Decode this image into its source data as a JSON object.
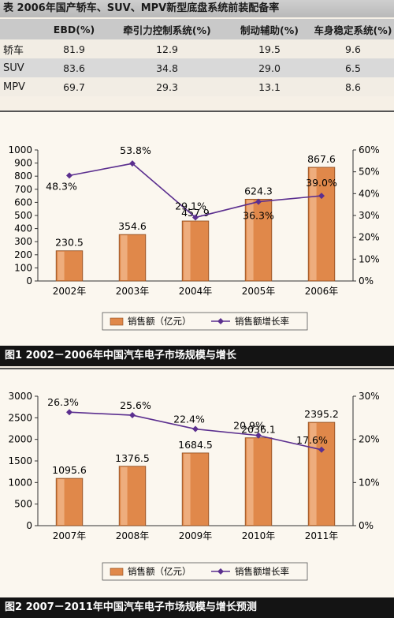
{
  "table": {
    "title": "表 2006年国产轿车、SUV、MPV新型底盘系统前装配备率",
    "headers": [
      "",
      "EBD(%)",
      "牵引力控制系统(%)",
      "制动辅助(%)",
      "车身稳定系统(%)"
    ],
    "rows": [
      [
        "轿车",
        "81.9",
        "12.9",
        "19.5",
        "9.6"
      ],
      [
        "SUV",
        "83.6",
        "34.8",
        "29.0",
        "6.5"
      ],
      [
        "MPV",
        "69.7",
        "29.3",
        "13.1",
        "8.6"
      ]
    ]
  },
  "chart_data": [
    {
      "type": "bar",
      "title": "图1 2002－2006年中国汽车电子市场规模与增长",
      "categories": [
        "2002年",
        "2003年",
        "2004年",
        "2005年",
        "2006年"
      ],
      "series": [
        {
          "name": "销售额（亿元）",
          "type": "bar",
          "axis": "left",
          "values": [
            230.5,
            354.6,
            457.9,
            624.3,
            867.6
          ],
          "labels": [
            "230.5",
            "354.6",
            "457.9",
            "624.3",
            "867.6"
          ]
        },
        {
          "name": "销售额增长率",
          "type": "line",
          "axis": "right",
          "values": [
            48.3,
            53.8,
            29.1,
            36.3,
            39.0
          ],
          "labels": [
            "48.3%",
            "53.8%",
            "29.1%",
            "36.3%",
            "39.0%"
          ]
        }
      ],
      "left_ticks": [
        "0",
        "100",
        "200",
        "300",
        "400",
        "500",
        "600",
        "700",
        "800",
        "900",
        "1000"
      ],
      "right_ticks": [
        "0%",
        "10%",
        "20%",
        "30%",
        "40%",
        "50%",
        "60%"
      ],
      "ylim": [
        0,
        1000
      ],
      "y2lim": [
        0,
        60
      ],
      "legend": "bottom",
      "grid": false,
      "colors": {
        "bar": "#e0884a",
        "line": "#5b2f8f"
      }
    },
    {
      "type": "bar",
      "title": "图2 2007－2011年中国汽车电子市场规模与增长预测",
      "categories": [
        "2007年",
        "2008年",
        "2009年",
        "2010年",
        "2011年"
      ],
      "series": [
        {
          "name": "销售额（亿元）",
          "type": "bar",
          "axis": "left",
          "values": [
            1095.6,
            1376.5,
            1684.5,
            2036.1,
            2395.2
          ],
          "labels": [
            "1095.6",
            "1376.5",
            "1684.5",
            "2036.1",
            "2395.2"
          ]
        },
        {
          "name": "销售额增长率",
          "type": "line",
          "axis": "right",
          "values": [
            26.3,
            25.6,
            22.4,
            20.9,
            17.6
          ],
          "labels": [
            "26.3%",
            "25.6%",
            "22.4%",
            "20.9%",
            "17.6%"
          ]
        }
      ],
      "left_ticks": [
        "0",
        "500",
        "1000",
        "1500",
        "2000",
        "2500",
        "3000"
      ],
      "right_ticks": [
        "0%",
        "10%",
        "20%",
        "30%"
      ],
      "ylim": [
        0,
        3000
      ],
      "y2lim": [
        0,
        30
      ],
      "legend": "bottom",
      "grid": false,
      "colors": {
        "bar": "#e0884a",
        "line": "#5b2f8f"
      }
    }
  ]
}
